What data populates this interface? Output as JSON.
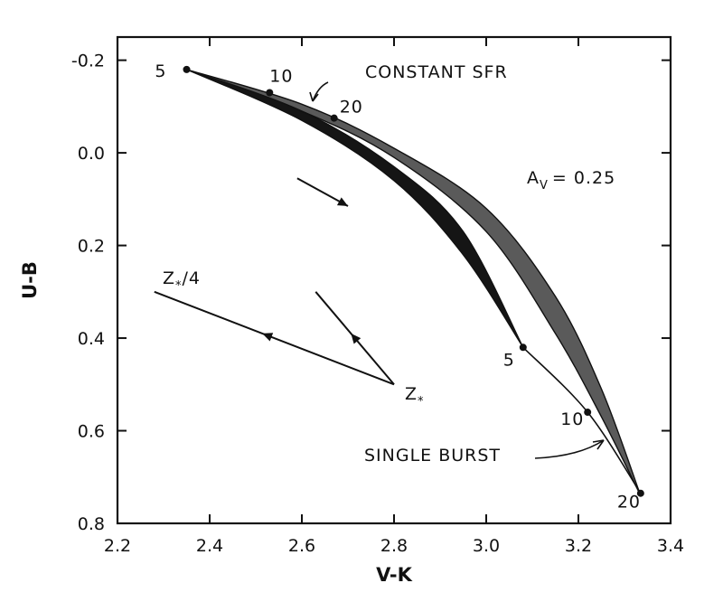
{
  "chart_data": {
    "type": "line",
    "title": "",
    "xlabel": "V-K",
    "ylabel": "U-B",
    "xlim": [
      2.2,
      3.4
    ],
    "ylim": [
      0.8,
      -0.25
    ],
    "y_inverted": true,
    "x_ticks": [
      "2.2",
      "2.4",
      "2.6",
      "2.8",
      "3.0",
      "3.2",
      "3.4"
    ],
    "y_ticks": [
      "-0.2",
      "0.0",
      "0.2",
      "0.4",
      "0.6",
      "0.8"
    ],
    "grid": false,
    "series": [
      {
        "name": "CONSTANT SFR",
        "points": [
          [
            2.35,
            -0.18
          ],
          [
            2.53,
            -0.13
          ],
          [
            2.67,
            -0.075
          ]
        ],
        "point_labels": [
          "5",
          "10",
          "20"
        ],
        "band_lower": [
          [
            2.35,
            -0.18
          ],
          [
            2.6,
            -0.09
          ],
          [
            2.8,
            0.01
          ],
          [
            3.0,
            0.17
          ],
          [
            3.15,
            0.39
          ],
          [
            3.25,
            0.57
          ],
          [
            3.335,
            0.74
          ]
        ],
        "band_upper": [
          [
            2.35,
            -0.18
          ],
          [
            2.6,
            -0.105
          ],
          [
            2.8,
            -0.01
          ],
          [
            3.0,
            0.12
          ],
          [
            3.15,
            0.31
          ],
          [
            3.25,
            0.51
          ],
          [
            3.335,
            0.74
          ]
        ]
      },
      {
        "name": "SINGLE BURST",
        "points": [
          [
            3.08,
            0.42
          ],
          [
            3.22,
            0.56
          ],
          [
            3.335,
            0.735
          ]
        ],
        "point_labels": [
          "5",
          "10",
          "20"
        ],
        "band_lower": [
          [
            2.35,
            -0.18
          ],
          [
            2.6,
            -0.07
          ],
          [
            2.8,
            0.06
          ],
          [
            2.95,
            0.22
          ],
          [
            3.08,
            0.42
          ]
        ],
        "band_upper": [
          [
            2.35,
            -0.18
          ],
          [
            2.6,
            -0.09
          ],
          [
            2.8,
            0.03
          ],
          [
            2.95,
            0.17
          ],
          [
            3.08,
            0.42
          ]
        ]
      }
    ],
    "annotations": {
      "constant_label": "CONSTANT SFR",
      "single_label": "SINGLE BURST",
      "av_prefix": "A",
      "av_sub": "V",
      "av_value": "= 0.25",
      "zstar": "Z",
      "zstar4": "/4",
      "star": "*"
    },
    "av_vector": [
      [
        2.59,
        0.055
      ],
      [
        2.7,
        0.115
      ]
    ],
    "metallicity_vectors": [
      {
        "from": [
          2.8,
          0.5
        ],
        "to": [
          2.28,
          0.3
        ]
      },
      {
        "from": [
          2.8,
          0.5
        ],
        "to": [
          2.63,
          0.3
        ]
      }
    ]
  }
}
